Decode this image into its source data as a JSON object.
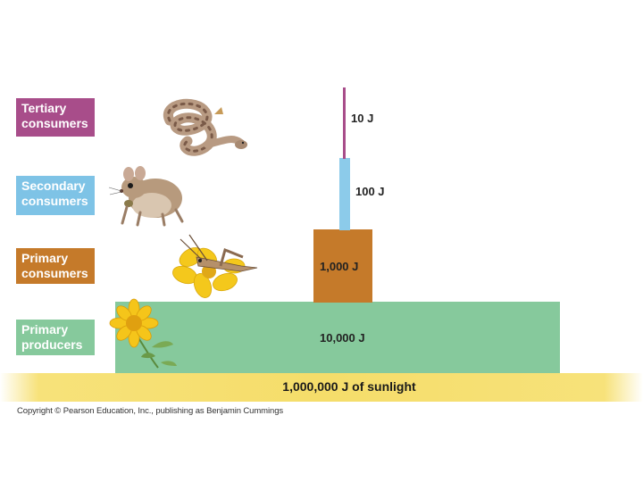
{
  "levels": {
    "tertiary": {
      "label": "Tertiary consumers",
      "energy": "10 J",
      "color": "#a84d8a"
    },
    "secondary": {
      "label": "Secondary consumers",
      "energy": "100 J",
      "color": "#8ccbea"
    },
    "primary": {
      "label": "Primary consumers",
      "energy": "1,000 J",
      "color": "#c57a2a"
    },
    "producers": {
      "label": "Primary producers",
      "energy": "10,000 J",
      "color": "#86c99c"
    }
  },
  "sunlight": {
    "label": "1,000,000 J of sunlight",
    "color": "#f5dd6a"
  },
  "copyright": "Copyright © Pearson Education, Inc., publishing as Benjamin Cummings",
  "icons": [
    "snake-icon",
    "mouse-icon",
    "grasshopper-icon",
    "flower-icon"
  ]
}
